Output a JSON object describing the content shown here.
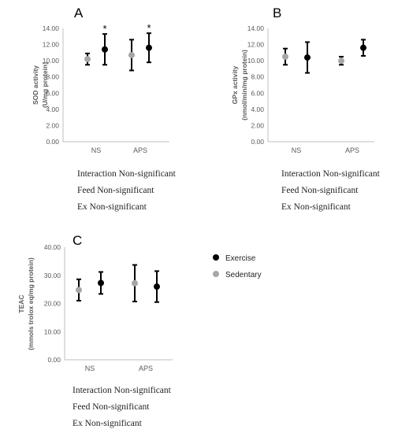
{
  "chart_data": [
    {
      "panel": "A",
      "type": "scatter",
      "ylabel_lines": [
        "SOD activity",
        "(U/mg protein)"
      ],
      "categories": [
        "NS",
        "APS"
      ],
      "ylim": [
        0,
        14
      ],
      "yticks": [
        "0.00",
        "2.00",
        "4.00",
        "6.00",
        "8.00",
        "10.00",
        "12.00",
        "14.00"
      ],
      "series": [
        {
          "name": "Sedentary",
          "color": "#a6a6a6",
          "means": [
            10.2,
            10.7
          ],
          "errors": [
            0.7,
            1.9
          ],
          "sig": [
            "",
            ""
          ]
        },
        {
          "name": "Exercise",
          "color": "#000000",
          "means": [
            11.4,
            11.6
          ],
          "errors": [
            1.9,
            1.8
          ],
          "sig": [
            "*",
            "*"
          ]
        }
      ],
      "notes": [
        "Interaction Non-significant",
        "Feed Non-significant",
        "Ex Non-significant"
      ]
    },
    {
      "panel": "B",
      "type": "scatter",
      "ylabel_lines": [
        "GPx activity",
        "(nmol/min/mg protein)"
      ],
      "categories": [
        "NS",
        "APS"
      ],
      "ylim": [
        0,
        14
      ],
      "yticks": [
        "0.00",
        "2.00",
        "4.00",
        "6.00",
        "8.00",
        "10.00",
        "12.00",
        "14.00"
      ],
      "series": [
        {
          "name": "Sedentary",
          "color": "#a6a6a6",
          "means": [
            10.5,
            10.0
          ],
          "errors": [
            1.0,
            0.5
          ],
          "sig": [
            "",
            ""
          ]
        },
        {
          "name": "Exercise",
          "color": "#000000",
          "means": [
            10.4,
            11.6
          ],
          "errors": [
            1.9,
            1.0
          ],
          "sig": [
            "",
            ""
          ]
        }
      ],
      "notes": [
        "Interaction Non-significant",
        "Feed Non-significant",
        "Ex Non-significant"
      ]
    },
    {
      "panel": "C",
      "type": "scatter",
      "ylabel_lines": [
        "TEAC",
        "(mmols trolox eq/mg protein)"
      ],
      "categories": [
        "NS",
        "APS"
      ],
      "ylim": [
        0,
        40
      ],
      "yticks": [
        "0.00",
        "10.00",
        "20.00",
        "30.00",
        "40.00"
      ],
      "series": [
        {
          "name": "Sedentary",
          "color": "#a6a6a6",
          "means": [
            24.8,
            27.2
          ],
          "errors": [
            3.8,
            6.5
          ],
          "sig": [
            "",
            ""
          ]
        },
        {
          "name": "Exercise",
          "color": "#000000",
          "means": [
            27.3,
            26.0
          ],
          "errors": [
            3.9,
            5.5
          ],
          "sig": [
            "",
            ""
          ]
        }
      ],
      "notes": [
        "Interaction Non-significant",
        "Feed Non-significant",
        "Ex Non-significant"
      ]
    }
  ],
  "legend": [
    {
      "label": "Exercise",
      "color": "#000000"
    },
    {
      "label": "Sedentary",
      "color": "#a6a6a6"
    }
  ]
}
